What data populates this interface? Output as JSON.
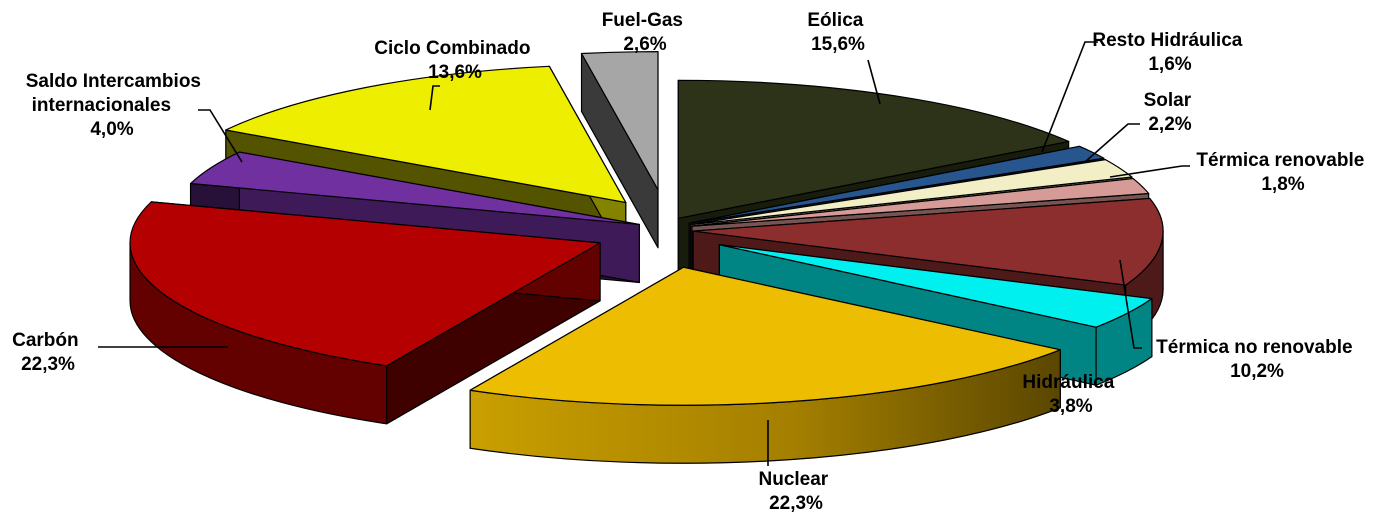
{
  "chart_data": {
    "type": "pie",
    "title": "",
    "style": "3d-exploded",
    "slices": [
      {
        "name": "Eólica",
        "value": 15.6,
        "label": "15,6%",
        "color": "#2c3318"
      },
      {
        "name": "Resto Hidráulica",
        "value": 1.6,
        "label": "1,6%",
        "color": "#27568f"
      },
      {
        "name": "Solar",
        "value": 2.2,
        "label": "2,2%",
        "color": "#f2efc6"
      },
      {
        "name": "Térmica renovable",
        "value": 1.8,
        "label": "1,8%",
        "color": "#d69b97"
      },
      {
        "name": "Térmica no renovable",
        "value": 10.2,
        "label": "10,2%",
        "color": "#8c2e2e"
      },
      {
        "name": "Hidráulica",
        "value": 3.8,
        "label": "3,8%",
        "color": "#00f0f0"
      },
      {
        "name": "Nuclear",
        "value": 22.3,
        "label": "22,3%",
        "color": "#ecbd00"
      },
      {
        "name": "Carbón",
        "value": 22.3,
        "label": "22,3%",
        "color": "#b40000"
      },
      {
        "name": "Saldo Intercambios internacionales",
        "value": 4.0,
        "label": "4,0%",
        "color": "#7030a0"
      },
      {
        "name": "Ciclo Combinado",
        "value": 13.6,
        "label": "13,6%",
        "color": "#eeee00"
      },
      {
        "name": "Fuel-Gas",
        "value": 2.6,
        "label": "2,6%",
        "color": "#a6a6a6"
      }
    ]
  }
}
